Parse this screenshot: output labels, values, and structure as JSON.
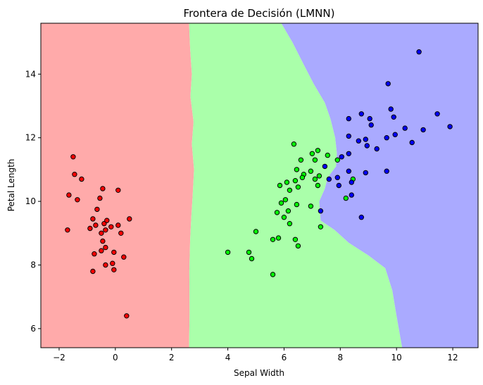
{
  "chart_data": {
    "type": "scatter",
    "title": "Frontera de Decisión (LMNN)",
    "xlabel": "Sepal Width",
    "ylabel": "Petal Length",
    "xlim": [
      -2.65,
      12.9
    ],
    "ylim": [
      5.4,
      15.6
    ],
    "xticks": [
      -2,
      0,
      2,
      4,
      6,
      8,
      10,
      12
    ],
    "yticks": [
      6,
      8,
      10,
      12,
      14
    ],
    "grid": false,
    "colors": {
      "region_0": "#ffaaaa",
      "region_1": "#aaffaa",
      "region_2": "#aaaaff",
      "class_0": "#ff0000",
      "class_1": "#00ff00",
      "class_2": "#0000ff",
      "marker_edge": "#000000"
    },
    "decision_boundaries": {
      "boundary_0_1": [
        [
          2.62,
          15.6
        ],
        [
          2.66,
          14.8
        ],
        [
          2.72,
          14.0
        ],
        [
          2.67,
          13.3
        ],
        [
          2.78,
          12.5
        ],
        [
          2.72,
          11.8
        ],
        [
          2.8,
          11.0
        ],
        [
          2.75,
          10.2
        ],
        [
          2.7,
          9.5
        ],
        [
          2.66,
          8.8
        ],
        [
          2.63,
          7.8
        ],
        [
          2.64,
          6.5
        ],
        [
          2.62,
          5.4
        ]
      ],
      "boundary_1_2": [
        [
          5.9,
          15.6
        ],
        [
          6.3,
          15.0
        ],
        [
          6.7,
          14.3
        ],
        [
          7.05,
          13.7
        ],
        [
          7.45,
          13.1
        ],
        [
          7.65,
          12.6
        ],
        [
          7.82,
          12.0
        ],
        [
          7.88,
          11.5
        ],
        [
          7.85,
          11.1
        ],
        [
          7.55,
          10.75
        ],
        [
          7.45,
          10.4
        ],
        [
          7.25,
          10.0
        ],
        [
          7.3,
          9.4
        ],
        [
          7.8,
          9.1
        ],
        [
          8.3,
          8.7
        ],
        [
          9.0,
          8.3
        ],
        [
          9.6,
          7.9
        ],
        [
          9.85,
          7.2
        ],
        [
          10.0,
          6.4
        ],
        [
          10.2,
          5.4
        ]
      ]
    },
    "series": [
      {
        "class": 0,
        "points": [
          [
            -1.5,
            11.4
          ],
          [
            -1.45,
            10.85
          ],
          [
            -1.2,
            10.7
          ],
          [
            -1.65,
            10.2
          ],
          [
            -1.35,
            10.05
          ],
          [
            -0.45,
            10.4
          ],
          [
            0.1,
            10.35
          ],
          [
            -0.55,
            10.1
          ],
          [
            -1.7,
            9.1
          ],
          [
            -0.9,
            9.15
          ],
          [
            -0.8,
            9.45
          ],
          [
            -0.65,
            9.75
          ],
          [
            -0.7,
            9.25
          ],
          [
            -0.5,
            9.0
          ],
          [
            -0.4,
            9.3
          ],
          [
            -0.15,
            9.2
          ],
          [
            0.1,
            9.25
          ],
          [
            -0.3,
            9.4
          ],
          [
            -0.35,
            9.1
          ],
          [
            0.2,
            9.0
          ],
          [
            0.5,
            9.45
          ],
          [
            -0.45,
            8.75
          ],
          [
            -0.5,
            8.45
          ],
          [
            -0.35,
            8.55
          ],
          [
            -0.75,
            8.35
          ],
          [
            -0.05,
            8.4
          ],
          [
            0.3,
            8.25
          ],
          [
            -0.8,
            7.8
          ],
          [
            -0.35,
            8.0
          ],
          [
            -0.1,
            8.05
          ],
          [
            -0.05,
            7.85
          ],
          [
            0.4,
            6.4
          ]
        ]
      },
      {
        "class": 1,
        "points": [
          [
            6.35,
            11.8
          ],
          [
            7.2,
            11.6
          ],
          [
            7.0,
            11.5
          ],
          [
            7.55,
            11.45
          ],
          [
            6.6,
            11.3
          ],
          [
            7.1,
            11.3
          ],
          [
            7.9,
            11.3
          ],
          [
            6.45,
            11.0
          ],
          [
            6.7,
            10.85
          ],
          [
            6.95,
            10.95
          ],
          [
            7.25,
            10.8
          ],
          [
            6.65,
            10.75
          ],
          [
            6.4,
            10.65
          ],
          [
            7.1,
            10.7
          ],
          [
            6.1,
            10.6
          ],
          [
            5.85,
            10.5
          ],
          [
            6.5,
            10.45
          ],
          [
            7.2,
            10.5
          ],
          [
            8.45,
            10.7
          ],
          [
            6.2,
            10.35
          ],
          [
            6.05,
            10.05
          ],
          [
            5.9,
            9.95
          ],
          [
            6.45,
            9.9
          ],
          [
            6.95,
            9.85
          ],
          [
            8.2,
            10.1
          ],
          [
            5.75,
            9.65
          ],
          [
            6.15,
            9.7
          ],
          [
            6.0,
            9.5
          ],
          [
            6.2,
            9.3
          ],
          [
            5.0,
            9.05
          ],
          [
            7.3,
            9.2
          ],
          [
            5.8,
            8.85
          ],
          [
            5.6,
            8.8
          ],
          [
            6.4,
            8.8
          ],
          [
            6.5,
            8.6
          ],
          [
            4.0,
            8.4
          ],
          [
            4.75,
            8.4
          ],
          [
            4.85,
            8.2
          ],
          [
            5.6,
            7.7
          ]
        ]
      },
      {
        "class": 2,
        "points": [
          [
            10.8,
            14.7
          ],
          [
            9.7,
            13.7
          ],
          [
            9.8,
            12.9
          ],
          [
            9.9,
            12.65
          ],
          [
            11.45,
            12.75
          ],
          [
            8.75,
            12.75
          ],
          [
            8.3,
            12.6
          ],
          [
            9.05,
            12.6
          ],
          [
            11.9,
            12.35
          ],
          [
            9.1,
            12.4
          ],
          [
            10.3,
            12.3
          ],
          [
            10.95,
            12.25
          ],
          [
            8.3,
            12.05
          ],
          [
            8.9,
            11.95
          ],
          [
            9.65,
            12.0
          ],
          [
            9.95,
            12.1
          ],
          [
            8.65,
            11.9
          ],
          [
            8.95,
            11.75
          ],
          [
            10.55,
            11.85
          ],
          [
            9.3,
            11.65
          ],
          [
            8.3,
            11.5
          ],
          [
            8.05,
            11.4
          ],
          [
            7.45,
            11.1
          ],
          [
            8.3,
            10.95
          ],
          [
            9.65,
            10.95
          ],
          [
            8.9,
            10.9
          ],
          [
            7.6,
            10.7
          ],
          [
            7.9,
            10.75
          ],
          [
            8.4,
            10.6
          ],
          [
            7.95,
            10.5
          ],
          [
            8.4,
            10.2
          ],
          [
            7.3,
            9.7
          ],
          [
            8.75,
            9.5
          ]
        ]
      }
    ]
  }
}
